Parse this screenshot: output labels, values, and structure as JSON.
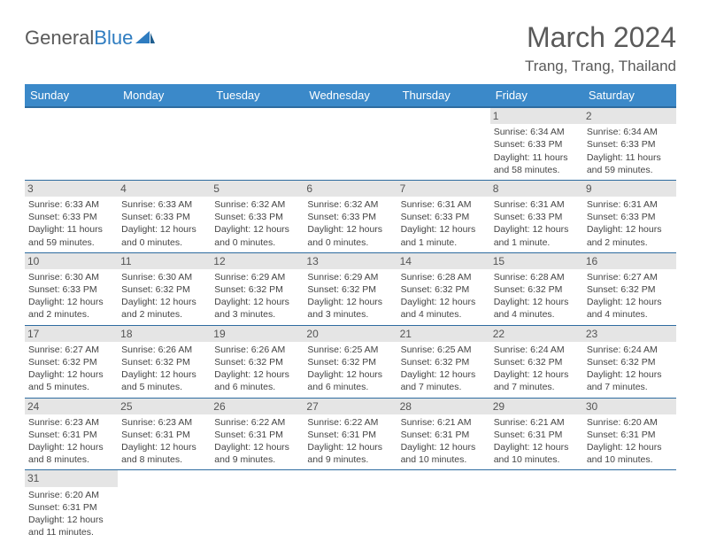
{
  "logo": {
    "word1": "General",
    "word2": "Blue"
  },
  "title": "March 2024",
  "location": "Trang, Trang, Thailand",
  "day_headers": [
    "Sunday",
    "Monday",
    "Tuesday",
    "Wednesday",
    "Thursday",
    "Friday",
    "Saturday"
  ],
  "colors": {
    "header_bg": "#3b89c9",
    "header_border": "#2e6ca0",
    "daynum_bg": "#e5e5e5",
    "text": "#444444",
    "title": "#5a5a5a"
  },
  "weeks": [
    [
      null,
      null,
      null,
      null,
      null,
      {
        "n": "1",
        "sr": "Sunrise: 6:34 AM",
        "ss": "Sunset: 6:33 PM",
        "d1": "Daylight: 11 hours",
        "d2": "and 58 minutes."
      },
      {
        "n": "2",
        "sr": "Sunrise: 6:34 AM",
        "ss": "Sunset: 6:33 PM",
        "d1": "Daylight: 11 hours",
        "d2": "and 59 minutes."
      }
    ],
    [
      {
        "n": "3",
        "sr": "Sunrise: 6:33 AM",
        "ss": "Sunset: 6:33 PM",
        "d1": "Daylight: 11 hours",
        "d2": "and 59 minutes."
      },
      {
        "n": "4",
        "sr": "Sunrise: 6:33 AM",
        "ss": "Sunset: 6:33 PM",
        "d1": "Daylight: 12 hours",
        "d2": "and 0 minutes."
      },
      {
        "n": "5",
        "sr": "Sunrise: 6:32 AM",
        "ss": "Sunset: 6:33 PM",
        "d1": "Daylight: 12 hours",
        "d2": "and 0 minutes."
      },
      {
        "n": "6",
        "sr": "Sunrise: 6:32 AM",
        "ss": "Sunset: 6:33 PM",
        "d1": "Daylight: 12 hours",
        "d2": "and 0 minutes."
      },
      {
        "n": "7",
        "sr": "Sunrise: 6:31 AM",
        "ss": "Sunset: 6:33 PM",
        "d1": "Daylight: 12 hours",
        "d2": "and 1 minute."
      },
      {
        "n": "8",
        "sr": "Sunrise: 6:31 AM",
        "ss": "Sunset: 6:33 PM",
        "d1": "Daylight: 12 hours",
        "d2": "and 1 minute."
      },
      {
        "n": "9",
        "sr": "Sunrise: 6:31 AM",
        "ss": "Sunset: 6:33 PM",
        "d1": "Daylight: 12 hours",
        "d2": "and 2 minutes."
      }
    ],
    [
      {
        "n": "10",
        "sr": "Sunrise: 6:30 AM",
        "ss": "Sunset: 6:33 PM",
        "d1": "Daylight: 12 hours",
        "d2": "and 2 minutes."
      },
      {
        "n": "11",
        "sr": "Sunrise: 6:30 AM",
        "ss": "Sunset: 6:32 PM",
        "d1": "Daylight: 12 hours",
        "d2": "and 2 minutes."
      },
      {
        "n": "12",
        "sr": "Sunrise: 6:29 AM",
        "ss": "Sunset: 6:32 PM",
        "d1": "Daylight: 12 hours",
        "d2": "and 3 minutes."
      },
      {
        "n": "13",
        "sr": "Sunrise: 6:29 AM",
        "ss": "Sunset: 6:32 PM",
        "d1": "Daylight: 12 hours",
        "d2": "and 3 minutes."
      },
      {
        "n": "14",
        "sr": "Sunrise: 6:28 AM",
        "ss": "Sunset: 6:32 PM",
        "d1": "Daylight: 12 hours",
        "d2": "and 4 minutes."
      },
      {
        "n": "15",
        "sr": "Sunrise: 6:28 AM",
        "ss": "Sunset: 6:32 PM",
        "d1": "Daylight: 12 hours",
        "d2": "and 4 minutes."
      },
      {
        "n": "16",
        "sr": "Sunrise: 6:27 AM",
        "ss": "Sunset: 6:32 PM",
        "d1": "Daylight: 12 hours",
        "d2": "and 4 minutes."
      }
    ],
    [
      {
        "n": "17",
        "sr": "Sunrise: 6:27 AM",
        "ss": "Sunset: 6:32 PM",
        "d1": "Daylight: 12 hours",
        "d2": "and 5 minutes."
      },
      {
        "n": "18",
        "sr": "Sunrise: 6:26 AM",
        "ss": "Sunset: 6:32 PM",
        "d1": "Daylight: 12 hours",
        "d2": "and 5 minutes."
      },
      {
        "n": "19",
        "sr": "Sunrise: 6:26 AM",
        "ss": "Sunset: 6:32 PM",
        "d1": "Daylight: 12 hours",
        "d2": "and 6 minutes."
      },
      {
        "n": "20",
        "sr": "Sunrise: 6:25 AM",
        "ss": "Sunset: 6:32 PM",
        "d1": "Daylight: 12 hours",
        "d2": "and 6 minutes."
      },
      {
        "n": "21",
        "sr": "Sunrise: 6:25 AM",
        "ss": "Sunset: 6:32 PM",
        "d1": "Daylight: 12 hours",
        "d2": "and 7 minutes."
      },
      {
        "n": "22",
        "sr": "Sunrise: 6:24 AM",
        "ss": "Sunset: 6:32 PM",
        "d1": "Daylight: 12 hours",
        "d2": "and 7 minutes."
      },
      {
        "n": "23",
        "sr": "Sunrise: 6:24 AM",
        "ss": "Sunset: 6:32 PM",
        "d1": "Daylight: 12 hours",
        "d2": "and 7 minutes."
      }
    ],
    [
      {
        "n": "24",
        "sr": "Sunrise: 6:23 AM",
        "ss": "Sunset: 6:31 PM",
        "d1": "Daylight: 12 hours",
        "d2": "and 8 minutes."
      },
      {
        "n": "25",
        "sr": "Sunrise: 6:23 AM",
        "ss": "Sunset: 6:31 PM",
        "d1": "Daylight: 12 hours",
        "d2": "and 8 minutes."
      },
      {
        "n": "26",
        "sr": "Sunrise: 6:22 AM",
        "ss": "Sunset: 6:31 PM",
        "d1": "Daylight: 12 hours",
        "d2": "and 9 minutes."
      },
      {
        "n": "27",
        "sr": "Sunrise: 6:22 AM",
        "ss": "Sunset: 6:31 PM",
        "d1": "Daylight: 12 hours",
        "d2": "and 9 minutes."
      },
      {
        "n": "28",
        "sr": "Sunrise: 6:21 AM",
        "ss": "Sunset: 6:31 PM",
        "d1": "Daylight: 12 hours",
        "d2": "and 10 minutes."
      },
      {
        "n": "29",
        "sr": "Sunrise: 6:21 AM",
        "ss": "Sunset: 6:31 PM",
        "d1": "Daylight: 12 hours",
        "d2": "and 10 minutes."
      },
      {
        "n": "30",
        "sr": "Sunrise: 6:20 AM",
        "ss": "Sunset: 6:31 PM",
        "d1": "Daylight: 12 hours",
        "d2": "and 10 minutes."
      }
    ],
    [
      {
        "n": "31",
        "sr": "Sunrise: 6:20 AM",
        "ss": "Sunset: 6:31 PM",
        "d1": "Daylight: 12 hours",
        "d2": "and 11 minutes."
      },
      null,
      null,
      null,
      null,
      null,
      null
    ]
  ]
}
